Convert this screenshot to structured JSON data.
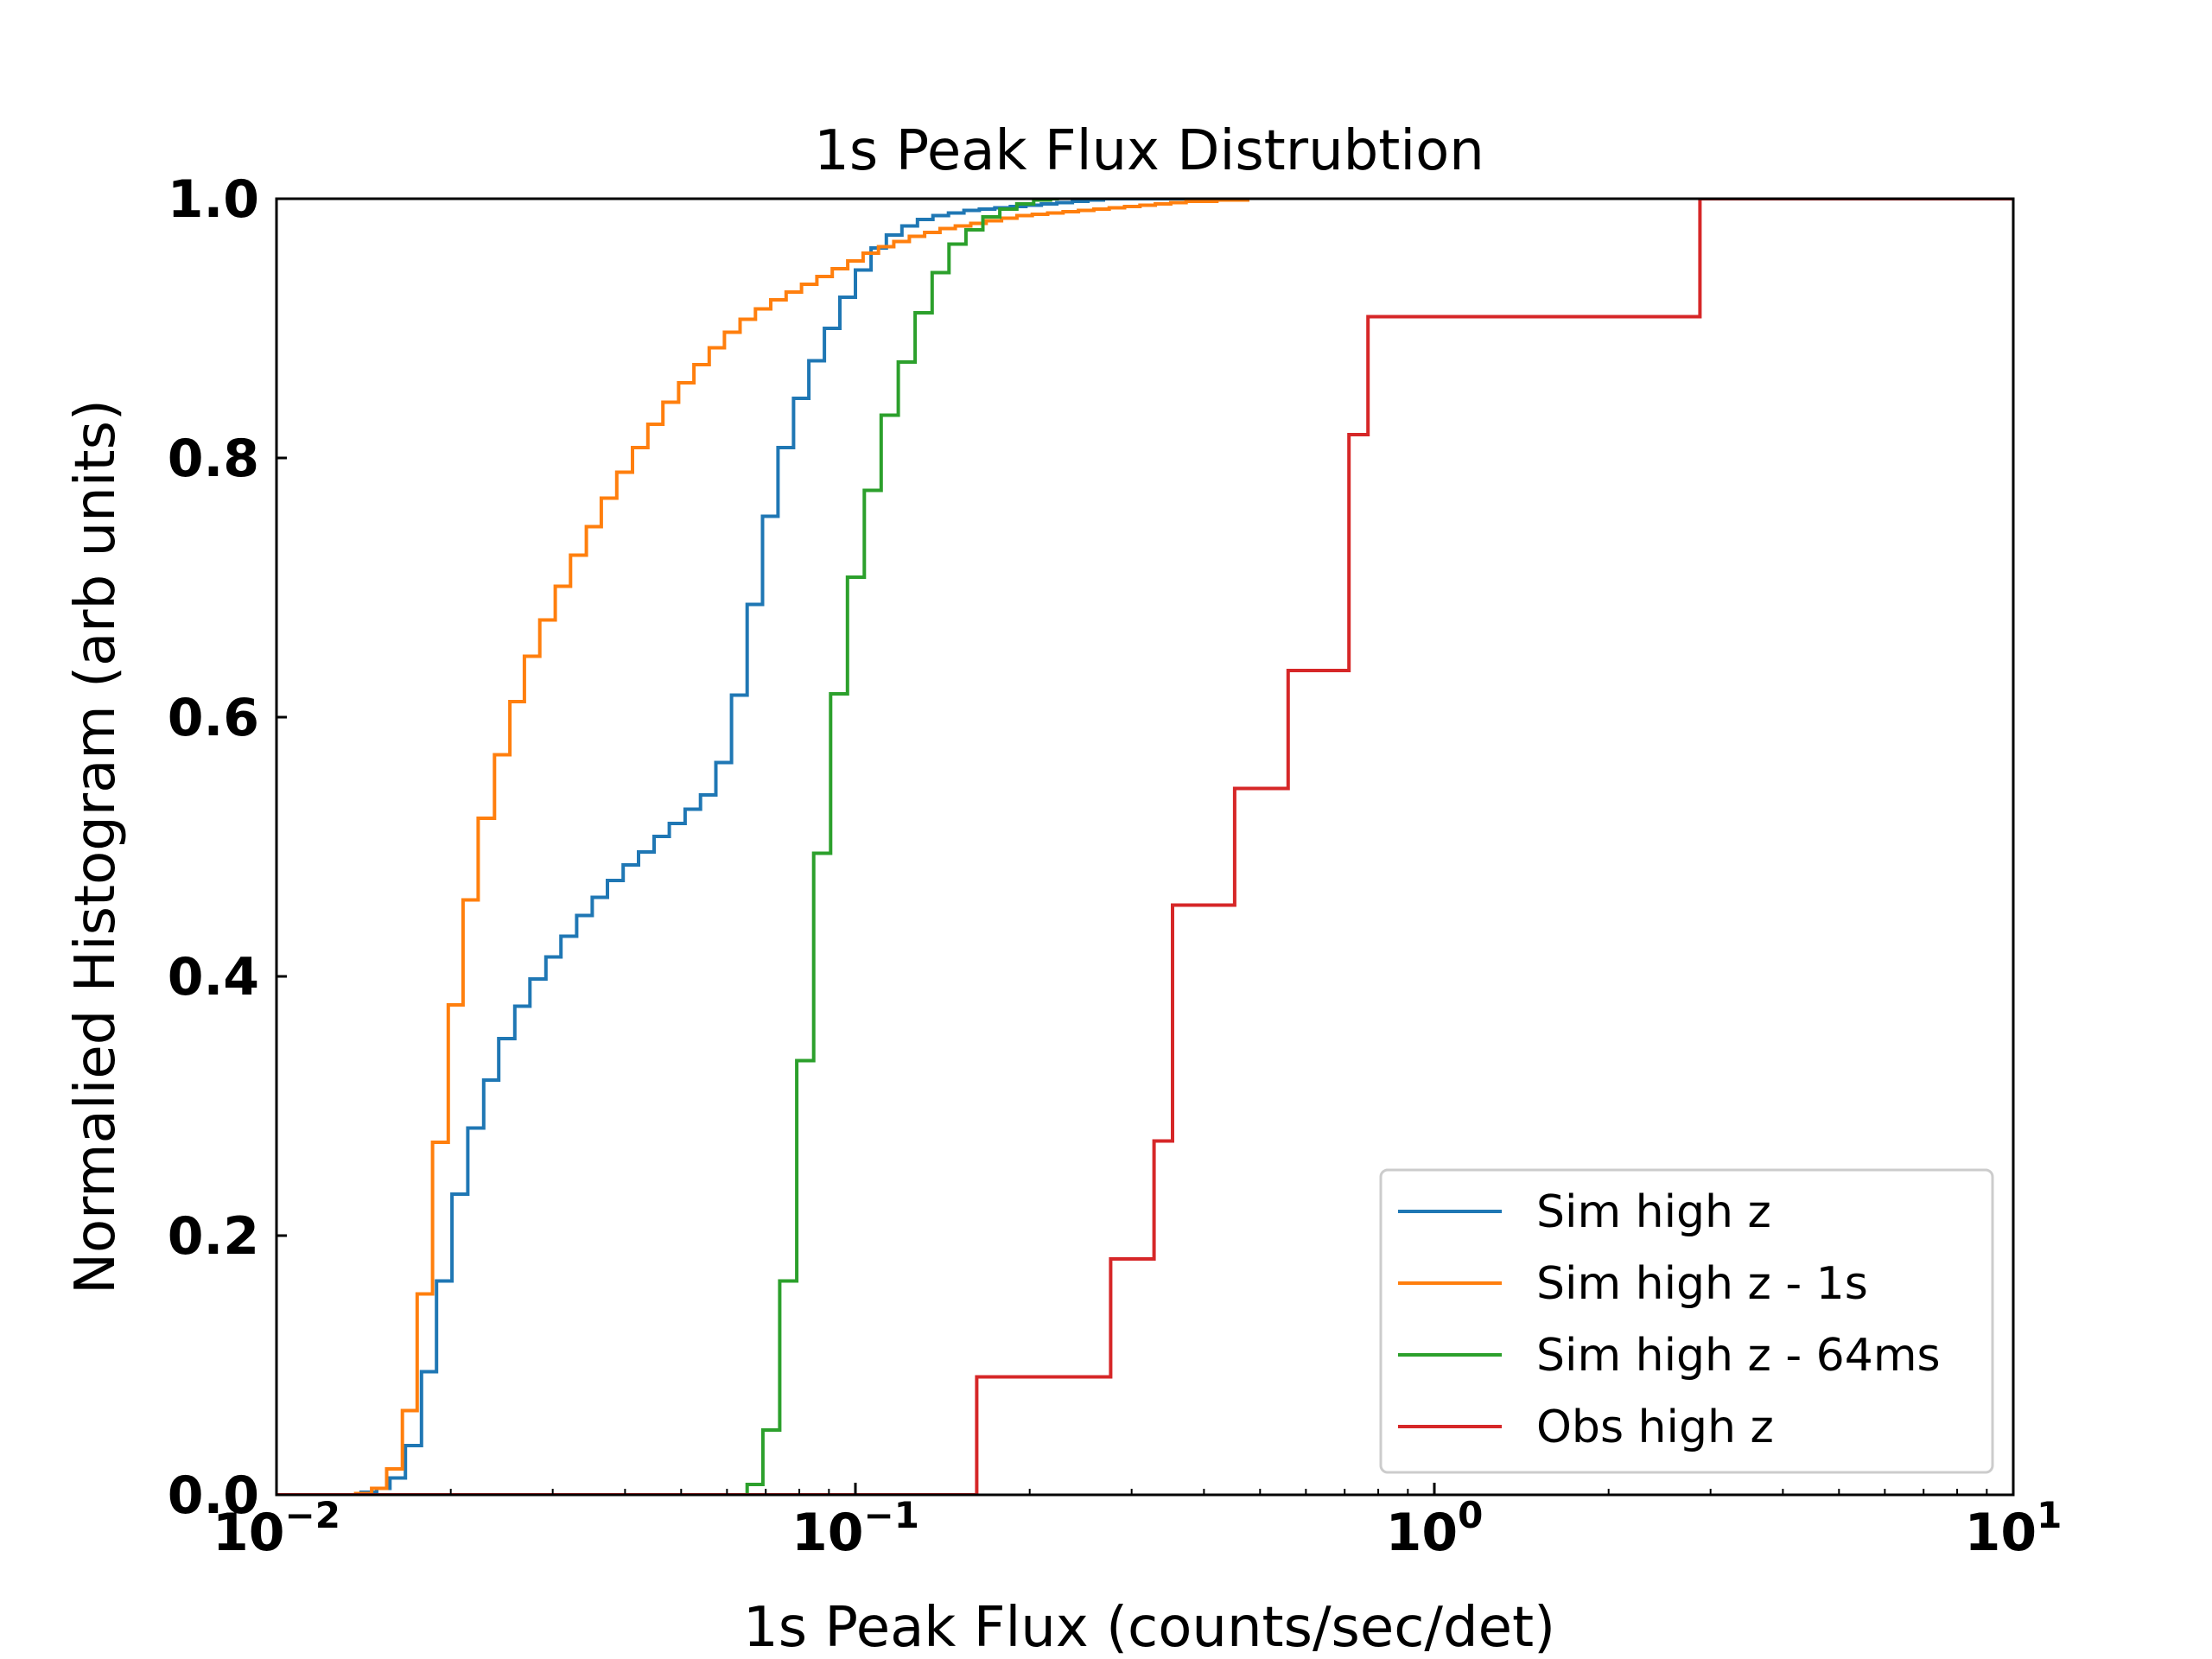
{
  "chart_data": {
    "type": "line",
    "drawstyle": "steps-post",
    "title": "1s Peak Flux Distrubtion",
    "xlabel": "1s Peak Flux (counts/sec/det)",
    "ylabel": "Normalied Histogram (arb units)",
    "xscale": "log",
    "xlim": [
      0.01,
      10
    ],
    "ylim": [
      0.0,
      1.0
    ],
    "xticks": [
      {
        "value": 0.01,
        "base": "10",
        "exp": "−2"
      },
      {
        "value": 0.1,
        "base": "10",
        "exp": "−1"
      },
      {
        "value": 1,
        "base": "10",
        "exp": "0"
      },
      {
        "value": 10,
        "base": "10",
        "exp": "1"
      }
    ],
    "yticks": [
      {
        "value": 0.0,
        "label": "0.0"
      },
      {
        "value": 0.2,
        "label": "0.2"
      },
      {
        "value": 0.4,
        "label": "0.4"
      },
      {
        "value": 0.6,
        "label": "0.6"
      },
      {
        "value": 0.8,
        "label": "0.8"
      },
      {
        "value": 1.0,
        "label": "1.0"
      }
    ],
    "grid": false,
    "legend_position": "lower-right",
    "series": [
      {
        "name": "Sim high z",
        "color": "#1f77b4",
        "x": [
          0.01,
          0.014,
          0.0149,
          0.0157,
          0.0167,
          0.0178,
          0.0189,
          0.0201,
          0.0214,
          0.0228,
          0.0242,
          0.0258,
          0.0274,
          0.0292,
          0.031,
          0.033,
          0.0351,
          0.0373,
          0.0397,
          0.0422,
          0.0449,
          0.0477,
          0.0508,
          0.054,
          0.0574,
          0.0611,
          0.065,
          0.0691,
          0.0735,
          0.0782,
          0.0831,
          0.0884,
          0.094,
          0.1,
          0.1064,
          0.1131,
          0.1203,
          0.128,
          0.1361,
          0.1448,
          0.154,
          0.1637,
          0.1741,
          0.1852,
          0.197,
          0.2095,
          0.2228,
          0.237,
          0.2521,
          0.2681,
          0.2851,
          0.3032,
          0.3225,
          0.343,
          0.3648,
          0.388,
          0.4126,
          0.4389
        ],
        "y": [
          0.0,
          0.002,
          0.005,
          0.013,
          0.038,
          0.095,
          0.165,
          0.232,
          0.283,
          0.32,
          0.352,
          0.377,
          0.398,
          0.415,
          0.431,
          0.447,
          0.461,
          0.474,
          0.486,
          0.496,
          0.508,
          0.518,
          0.529,
          0.54,
          0.565,
          0.617,
          0.687,
          0.755,
          0.808,
          0.846,
          0.875,
          0.9,
          0.924,
          0.945,
          0.962,
          0.972,
          0.979,
          0.984,
          0.987,
          0.989,
          0.991,
          0.992,
          0.993,
          0.994,
          0.995,
          0.996,
          0.997,
          0.998,
          0.999,
          1.0,
          1.0,
          1.0,
          1.0,
          1.0,
          1.0,
          1.0,
          1.0,
          1.0
        ]
      },
      {
        "name": "Sim high z - 1s",
        "color": "#ff7f0e",
        "x": [
          0.01,
          0.0137,
          0.0146,
          0.0155,
          0.0165,
          0.0175,
          0.0186,
          0.0198,
          0.021,
          0.0223,
          0.0238,
          0.0253,
          0.0268,
          0.0285,
          0.0303,
          0.0322,
          0.0343,
          0.0364,
          0.0387,
          0.0412,
          0.0438,
          0.0465,
          0.0495,
          0.0526,
          0.0559,
          0.0594,
          0.0632,
          0.0672,
          0.0714,
          0.0759,
          0.0807,
          0.0858,
          0.0912,
          0.097,
          0.1031,
          0.1096,
          0.1165,
          0.1239,
          0.1317,
          0.14,
          0.1488,
          0.1582,
          0.1682,
          0.1788,
          0.1901,
          0.2021,
          0.2148,
          0.2284,
          0.2428,
          0.2581,
          0.2744,
          0.2917,
          0.3101,
          0.3297,
          0.3505,
          0.3726,
          0.3961,
          0.4211,
          0.4477,
          0.476
        ],
        "y": [
          0.0,
          0.001,
          0.005,
          0.02,
          0.065,
          0.155,
          0.272,
          0.378,
          0.459,
          0.522,
          0.571,
          0.612,
          0.647,
          0.675,
          0.701,
          0.725,
          0.747,
          0.769,
          0.789,
          0.808,
          0.826,
          0.843,
          0.858,
          0.872,
          0.885,
          0.897,
          0.907,
          0.915,
          0.922,
          0.928,
          0.934,
          0.94,
          0.946,
          0.952,
          0.958,
          0.963,
          0.967,
          0.971,
          0.974,
          0.977,
          0.979,
          0.981,
          0.983,
          0.985,
          0.987,
          0.988,
          0.989,
          0.99,
          0.991,
          0.992,
          0.993,
          0.994,
          0.995,
          0.996,
          0.997,
          0.998,
          0.998,
          0.999,
          0.999,
          1.0
        ]
      },
      {
        "name": "Sim high z - 64ms",
        "color": "#2ca02c",
        "x": [
          0.01,
          0.065,
          0.0692,
          0.074,
          0.0792,
          0.0847,
          0.0906,
          0.0969,
          0.1036,
          0.1108,
          0.1186,
          0.1268,
          0.1357,
          0.1451,
          0.1552,
          0.166,
          0.1776,
          0.19,
          0.2032,
          0.2173,
          0.2247
        ],
        "y": [
          0.0,
          0.008,
          0.05,
          0.165,
          0.335,
          0.495,
          0.618,
          0.708,
          0.775,
          0.833,
          0.874,
          0.912,
          0.943,
          0.965,
          0.976,
          0.986,
          0.992,
          0.996,
          0.999,
          1.0,
          1.0
        ]
      },
      {
        "name": "Obs high z",
        "color": "#d62728",
        "x": [
          0.01,
          0.162,
          0.276,
          0.328,
          0.353,
          0.452,
          0.559,
          0.712,
          0.768,
          2.876,
          10
        ],
        "y": [
          0.0,
          0.091,
          0.182,
          0.273,
          0.455,
          0.545,
          0.636,
          0.818,
          0.909,
          1.0,
          1.0
        ]
      }
    ]
  }
}
